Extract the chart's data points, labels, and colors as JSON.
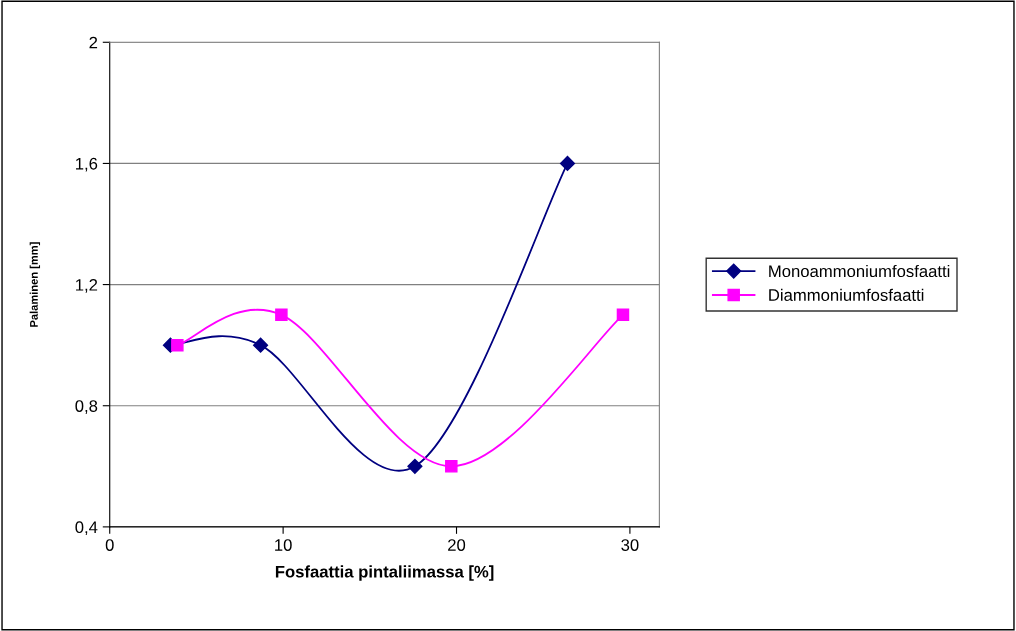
{
  "chart_data": {
    "type": "line",
    "xlabel": "Fosfaattia pintaliimassa [%]",
    "ylabel": "Palaminen [mm]",
    "series": [
      {
        "name": "Monoammoniumfosfaatti",
        "color": "#000080",
        "marker": "diamond",
        "x": [
          3.5,
          8.7,
          17.6,
          26.4
        ],
        "values": [
          1.0,
          1.0,
          0.6,
          1.6
        ]
      },
      {
        "name": "Diammoniumfosfaatti",
        "color": "#ff00ff",
        "marker": "square",
        "x": [
          3.9,
          9.9,
          19.7,
          29.6
        ],
        "values": [
          1.0,
          1.1,
          0.6,
          1.1
        ]
      }
    ],
    "xlim": [
      0,
      31.7
    ],
    "xticks": [
      0,
      10,
      20,
      30
    ],
    "ylim": [
      0.4,
      2
    ],
    "yticks": [
      {
        "value": 0.4,
        "label": "0,4"
      },
      {
        "value": 0.8,
        "label": "0,8"
      },
      {
        "value": 1.2,
        "label": "1,2"
      },
      {
        "value": 1.6,
        "label": "1,6"
      },
      {
        "value": 2,
        "label": "2"
      }
    ],
    "grid": "y",
    "legend": "right",
    "line_style": "solid"
  }
}
